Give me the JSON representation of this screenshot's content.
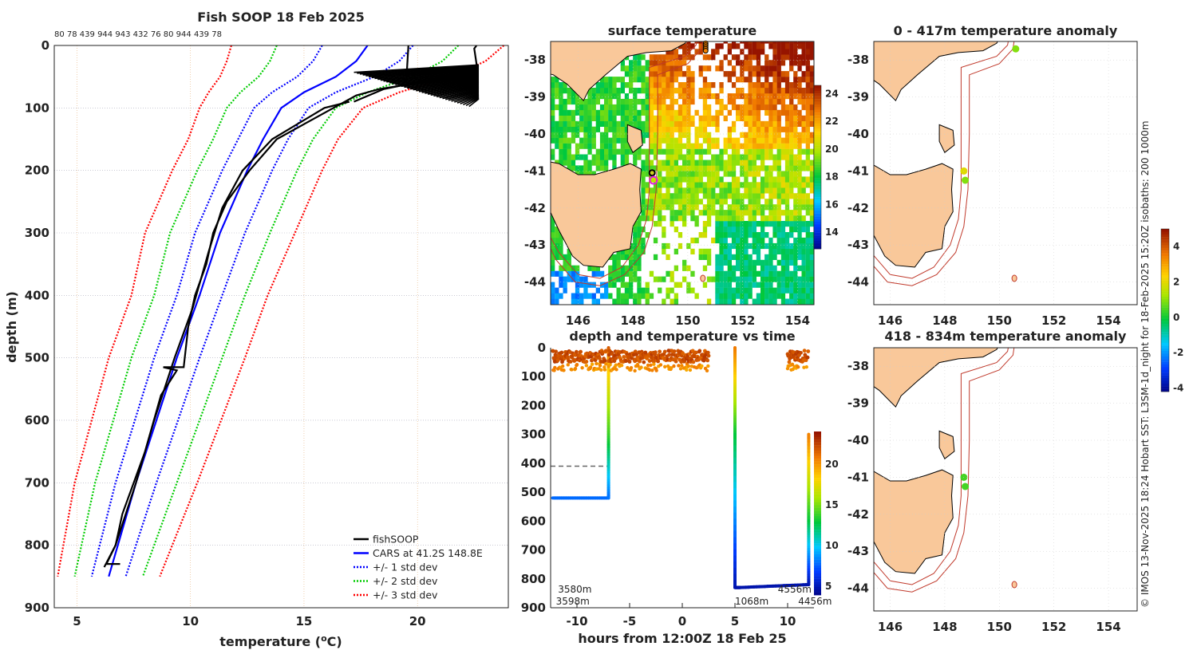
{
  "colors": {
    "land": "#f9c89a",
    "isobath": "#c0392b",
    "cars": "#0000ff",
    "std1": "#0000ff",
    "std2": "#00cc00",
    "std3": "#ff0000",
    "fish": "#000000"
  },
  "chart_data": [
    {
      "type": "line",
      "title": "Fish SOOP 18 Feb 2025",
      "top_labels": "80 78 439 944 943 432 76 80 944 439 78",
      "xlabel": "temperature (",
      "xlabel_unit": "o",
      "xlabel_end": "C)",
      "ylabel": "depth (m)",
      "xlim": [
        4,
        24
      ],
      "ylim": [
        900,
        0
      ],
      "xticks": [
        "5",
        "10",
        "15",
        "20"
      ],
      "yticks": [
        "0",
        "100",
        "200",
        "300",
        "400",
        "500",
        "600",
        "700",
        "800",
        "900"
      ],
      "grid": true,
      "legend_position": "bottom-right",
      "legend": [
        "fishSOOP",
        "CARS at 41.2S 148.8E",
        "+/- 1 std dev",
        "+/- 2 std dev",
        "+/- 3 std dev"
      ],
      "cars_depth": [
        0,
        25,
        50,
        75,
        100,
        150,
        200,
        250,
        300,
        400,
        500,
        600,
        700,
        800,
        850
      ],
      "cars_mean": [
        17.8,
        17.3,
        16.4,
        15.0,
        14.0,
        13.2,
        12.5,
        11.9,
        11.3,
        10.4,
        9.4,
        8.5,
        7.6,
        6.8,
        6.4
      ],
      "cars_std": [
        2.0,
        1.9,
        1.7,
        1.4,
        1.2,
        1.1,
        1.1,
        1.1,
        1.1,
        1.0,
        1.0,
        0.95,
        0.9,
        0.8,
        0.75
      ],
      "fishsoop": [
        {
          "depth": [
            0,
            5,
            30,
            45,
            55,
            70,
            90
          ],
          "temp": [
            22.6,
            22.5,
            22.6,
            22.4,
            20.5,
            18.5,
            17.2
          ]
        },
        {
          "depth": [
            50,
            60,
            70,
            80,
            100,
            150,
            200,
            250,
            300,
            350,
            400,
            450,
            515,
            515,
            520,
            560,
            650,
            750,
            800,
            830,
            830
          ],
          "temp": [
            22.5,
            20,
            18.3,
            17.3,
            16.3,
            13.8,
            12.6,
            11.6,
            11.0,
            10.7,
            10.2,
            9.9,
            9.7,
            8.8,
            9.4,
            8.7,
            8.0,
            7.0,
            6.7,
            6.3,
            6.9
          ]
        },
        {
          "depth": [
            0,
            60
          ],
          "temp": [
            19.6,
            19.5
          ]
        },
        {
          "depth": [
            90,
            100,
            150,
            200,
            260,
            330,
            420,
            500,
            600,
            700,
            800,
            835
          ],
          "temp": [
            17.0,
            15.9,
            13.6,
            12.3,
            11.4,
            10.8,
            10.1,
            9.3,
            8.4,
            7.6,
            6.7,
            6.2
          ]
        }
      ]
    },
    {
      "type": "heatmap",
      "title": "surface temperature",
      "lon_ticks": [
        "146",
        "148",
        "150",
        "152",
        "154"
      ],
      "lat_ticks": [
        "-38",
        "-39",
        "-40",
        "-41",
        "-42",
        "-43",
        "-44"
      ],
      "lon_range": [
        145,
        154.6
      ],
      "lat_range": [
        -44.6,
        -37.5
      ],
      "colorbar_ticks": [
        "14",
        "16",
        "18",
        "20",
        "22",
        "24"
      ],
      "colorbar_range": [
        12.8,
        24.6
      ],
      "markers": [
        {
          "lon": 148.7,
          "lat": -41.05,
          "style": "black-circle"
        },
        {
          "lon": 148.75,
          "lat": -41.25,
          "style": "magenta-circle"
        }
      ]
    },
    {
      "type": "scatter",
      "title": "depth and temperature vs time",
      "xlabel": "hours from 12:00Z 18 Feb 25",
      "xticks": [
        "-10",
        "-5",
        "0",
        "5",
        "10"
      ],
      "yticks": [
        "0",
        "100",
        "200",
        "300",
        "400",
        "500",
        "600",
        "700",
        "800",
        "900"
      ],
      "xlim": [
        -12.5,
        12.5
      ],
      "ylim": [
        900,
        0
      ],
      "colorbar_ticks": [
        "5",
        "10",
        "15",
        "20"
      ],
      "colorbar_range": [
        4,
        24
      ],
      "bottom_labels": [
        {
          "t": -12,
          "text": "3598m"
        },
        {
          "t": -11.8,
          "text": "3580m"
        },
        {
          "t": 5,
          "text": "1068m"
        },
        {
          "t": 11,
          "text": "4456m"
        },
        {
          "t": 11.6,
          "text": "4556m"
        }
      ],
      "dashed_depth": 410,
      "tracks": [
        {
          "t": [
            -12.3,
            -7
          ],
          "d": [
            520,
            520
          ],
          "temp": [
            8,
            8
          ]
        },
        {
          "t": [
            -7,
            -7,
            -7,
            -7
          ],
          "d": [
            0,
            60,
            300,
            520
          ],
          "temp": [
            22,
            19,
            14,
            8
          ]
        },
        {
          "t": [
            5,
            5,
            5,
            5,
            5.5,
            12,
            12,
            12
          ],
          "d": [
            0,
            80,
            300,
            830,
            830,
            820,
            600,
            300
          ],
          "temp": [
            21,
            19,
            13,
            5,
            5,
            5,
            13,
            21
          ]
        }
      ]
    },
    {
      "type": "scatter",
      "title": "0 - 417m temperature anomaly",
      "lon_ticks": [
        "146",
        "148",
        "150",
        "152",
        "154"
      ],
      "lat_ticks": [
        "-38",
        "-39",
        "-40",
        "-41",
        "-42",
        "-43",
        "-44"
      ],
      "points": [
        {
          "lon": 150.6,
          "lat": -37.7,
          "anom": 1.0
        },
        {
          "lon": 148.7,
          "lat": -41.0,
          "anom": 2.0
        },
        {
          "lon": 148.75,
          "lat": -41.25,
          "anom": 1.0
        }
      ]
    },
    {
      "type": "scatter",
      "title": "418 - 834m temperature anomaly",
      "lon_ticks": [
        "146",
        "148",
        "150",
        "152",
        "154"
      ],
      "lat_ticks": [
        "-38",
        "-39",
        "-40",
        "-41",
        "-42",
        "-43",
        "-44"
      ],
      "points": [
        {
          "lon": 148.7,
          "lat": -41.0,
          "anom": 0.5
        },
        {
          "lon": 148.75,
          "lat": -41.25,
          "anom": 0.5
        }
      ],
      "colorbar_ticks": [
        "4",
        "2",
        "0",
        "-2",
        "-4"
      ],
      "colorbar_range": [
        -4.2,
        5
      ]
    }
  ],
  "credit": "© IMOS 13-Nov-2025 18:24 Hobart SST: L3SM-1d_night for 18-Feb-2025 15:20Z isobaths: 200  1000m"
}
